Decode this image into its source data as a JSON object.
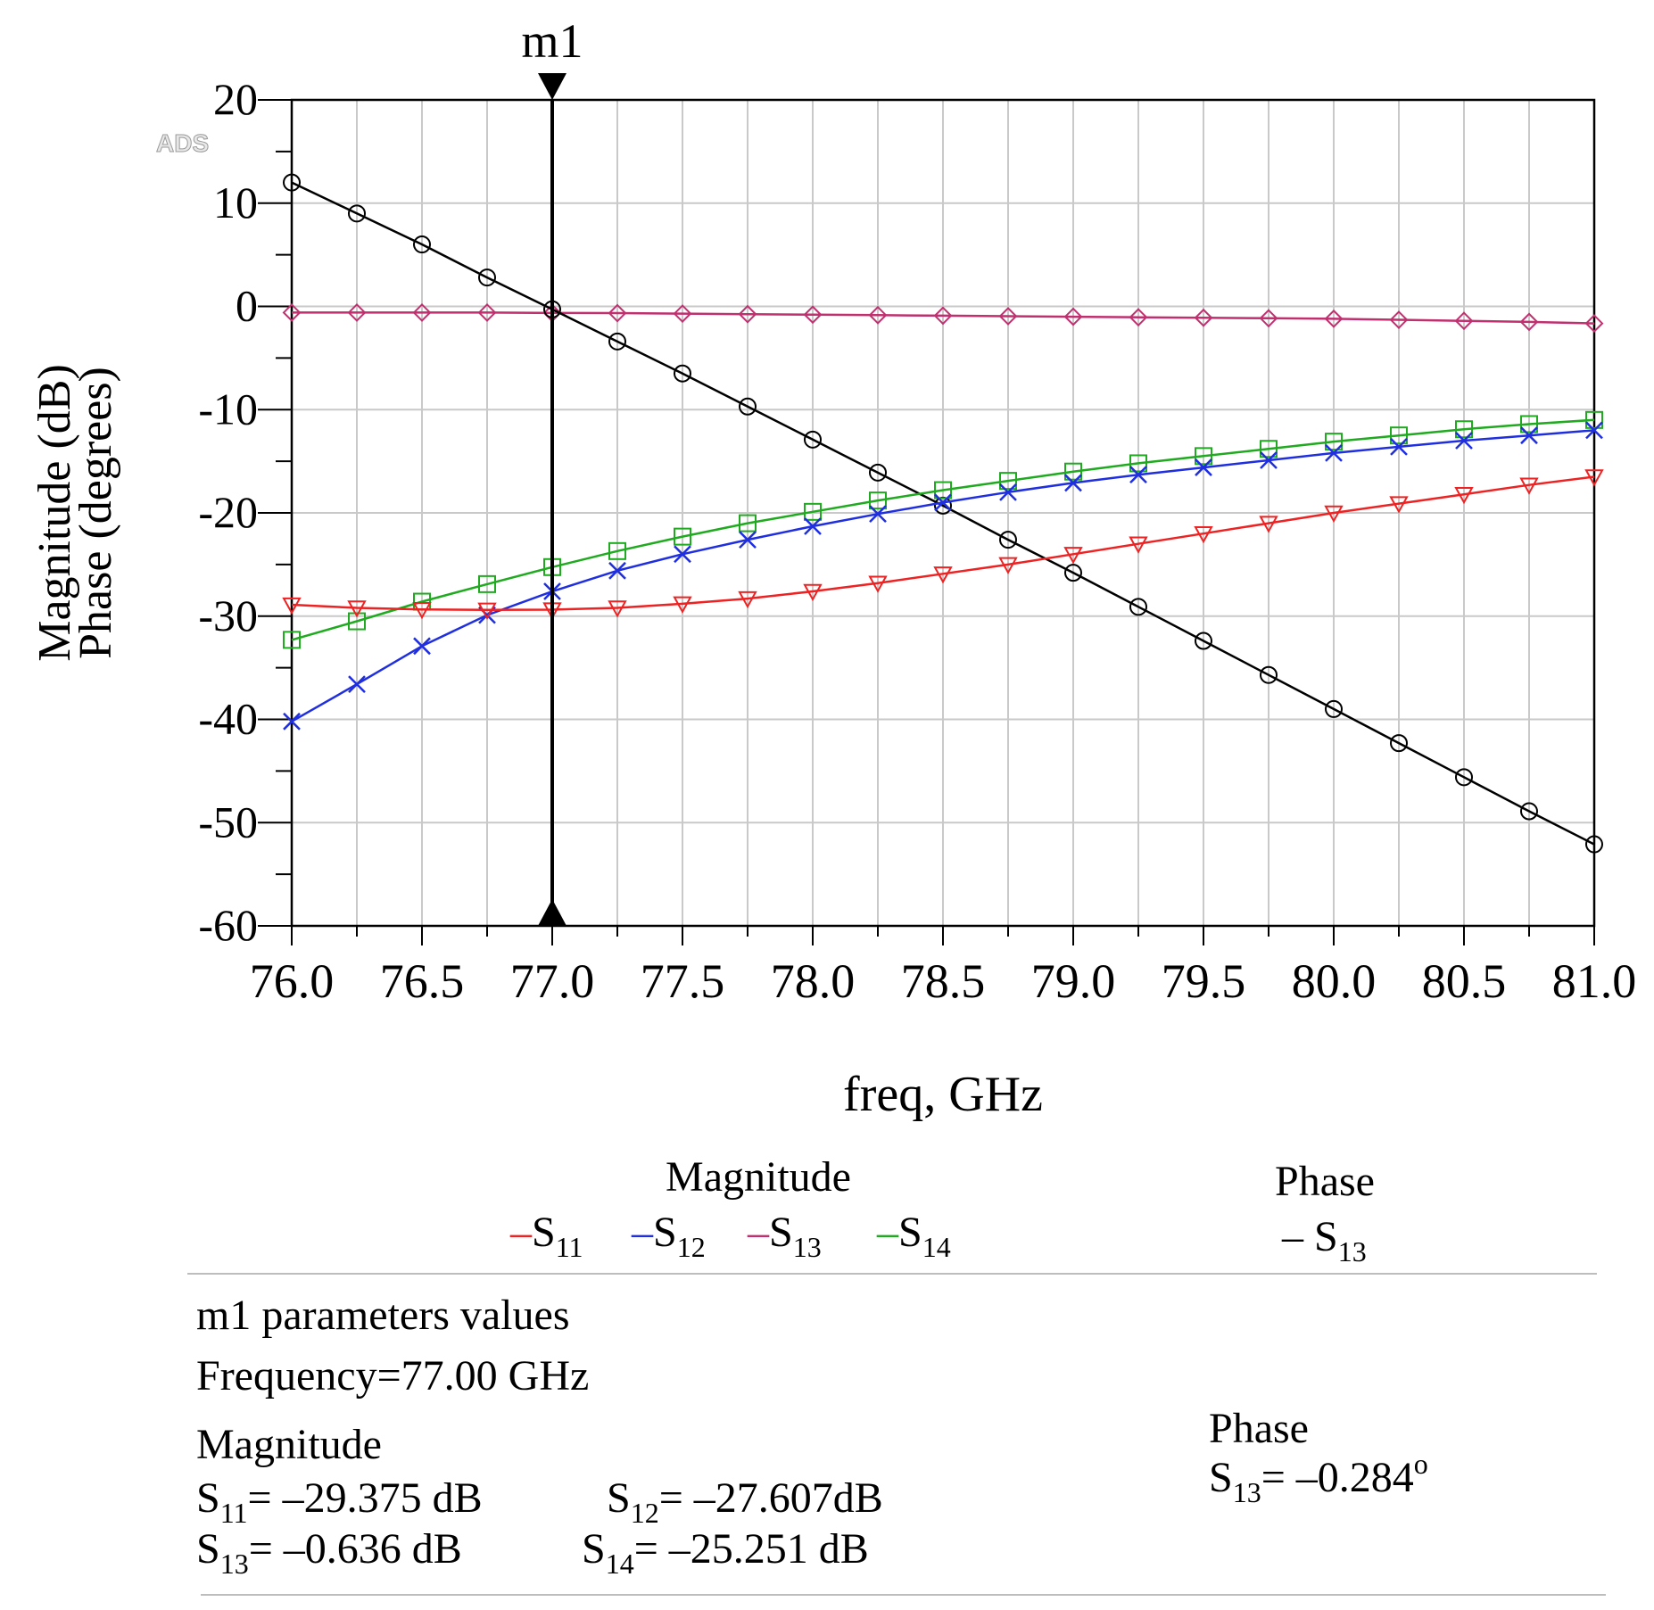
{
  "chart_data": {
    "type": "line",
    "x": [
      76.0,
      76.25,
      76.5,
      76.75,
      77.0,
      77.25,
      77.5,
      77.75,
      78.0,
      78.25,
      78.5,
      78.75,
      79.0,
      79.25,
      79.5,
      79.75,
      80.0,
      80.25,
      80.5,
      80.75,
      81.0
    ],
    "xlim": [
      76.0,
      81.0
    ],
    "ylim": [
      -60,
      20
    ],
    "xticks": [
      "76.0",
      "76.5",
      "77.0",
      "77.5",
      "78.0",
      "78.5",
      "79.0",
      "79.5",
      "80.0",
      "80.5",
      "81.0"
    ],
    "yticks": [
      "20",
      "10",
      "0",
      "-10",
      "-20",
      "-30",
      "-40",
      "-50",
      "-60"
    ],
    "xlabel": "freq, GHz",
    "ylabel_line1": "Magnitude (dB)",
    "ylabel_line2": "Phase (degrees)",
    "watermark": "ADS",
    "grid": true,
    "series": [
      {
        "name": "S13 magnitude",
        "color": "#c0306f",
        "marker": "diamond",
        "values": [
          -0.6,
          -0.6,
          -0.6,
          -0.6,
          -0.636,
          -0.65,
          -0.7,
          -0.75,
          -0.8,
          -0.85,
          -0.9,
          -0.95,
          -1.0,
          -1.05,
          -1.1,
          -1.15,
          -1.2,
          -1.3,
          -1.4,
          -1.5,
          -1.65
        ]
      },
      {
        "name": "S13 phase",
        "color": "#000000",
        "marker": "circle",
        "values": [
          12.0,
          9.0,
          6.0,
          2.8,
          -0.284,
          -3.4,
          -6.5,
          -9.7,
          -12.9,
          -16.1,
          -19.3,
          -22.6,
          -25.8,
          -29.1,
          -32.4,
          -35.7,
          -39.0,
          -42.3,
          -45.6,
          -48.9,
          -52.1
        ]
      },
      {
        "name": "S14",
        "color": "#1faa1f",
        "marker": "square",
        "values": [
          -32.3,
          -30.5,
          -28.6,
          -26.9,
          -25.251,
          -23.7,
          -22.3,
          -21.0,
          -19.9,
          -18.8,
          -17.8,
          -16.9,
          -16.0,
          -15.2,
          -14.5,
          -13.8,
          -13.1,
          -12.5,
          -11.9,
          -11.4,
          -11.0
        ]
      },
      {
        "name": "S12",
        "color": "#1f2fe0",
        "marker": "x",
        "values": [
          -40.2,
          -36.6,
          -32.9,
          -29.9,
          -27.607,
          -25.6,
          -24.0,
          -22.6,
          -21.3,
          -20.1,
          -19.0,
          -18.0,
          -17.1,
          -16.3,
          -15.6,
          -14.9,
          -14.2,
          -13.6,
          -13.0,
          -12.5,
          -12.0
        ]
      },
      {
        "name": "S11",
        "color": "#ee2222",
        "marker": "triangle-down",
        "values": [
          -28.9,
          -29.2,
          -29.35,
          -29.4,
          -29.375,
          -29.2,
          -28.8,
          -28.3,
          -27.6,
          -26.8,
          -25.9,
          -25.0,
          -24.0,
          -23.0,
          -22.0,
          -21.0,
          -20.0,
          -19.1,
          -18.2,
          -17.3,
          -16.5
        ]
      }
    ],
    "marker_line": {
      "label": "m1",
      "x": 77.0
    }
  },
  "legend": {
    "magnitude_title": "Magnitude",
    "phase_title": "Phase",
    "items": [
      {
        "base": "S",
        "sub": "11",
        "color": "#ee2222"
      },
      {
        "base": "S",
        "sub": "12",
        "color": "#1f2fe0"
      },
      {
        "base": "S",
        "sub": "13",
        "color": "#c0306f"
      },
      {
        "base": "S",
        "sub": "14",
        "color": "#1faa1f"
      }
    ],
    "phase_item": {
      "base": "S",
      "sub": "13",
      "color": "#000000"
    },
    "dash": "–"
  },
  "m1_panel": {
    "title": "m1 parameters values",
    "frequency": "Frequency=77.00 GHz",
    "magnitude_title": "Magnitude",
    "phase_title": "Phase",
    "s11": {
      "base": "S",
      "sub": "11",
      "value": "= –29.375 dB"
    },
    "s12": {
      "base": "S",
      "sub": "12",
      "value": "= –27.607dB"
    },
    "s13": {
      "base": "S",
      "sub": "13",
      "value": "= –0.636 dB"
    },
    "s14": {
      "base": "S",
      "sub": "14",
      "value": "= –25.251 dB"
    },
    "phase_s13": {
      "base": "S",
      "sub": "13",
      "value": "= –0.284",
      "unit": "o"
    }
  }
}
